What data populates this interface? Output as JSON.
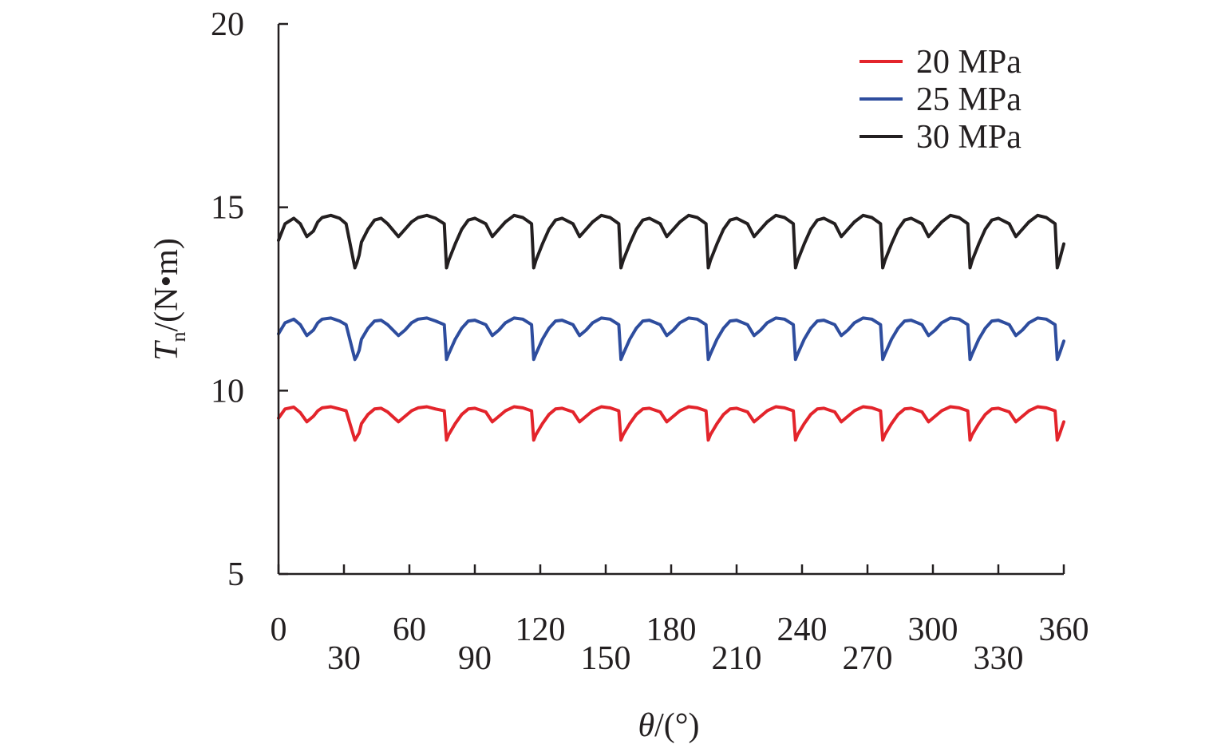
{
  "chart_data": {
    "type": "line",
    "xlabel": {
      "symbol": "θ",
      "unit": "/(°)"
    },
    "ylabel": {
      "symbol": "T",
      "subscript": "n",
      "unit": "/(N•m)"
    },
    "xlim": [
      0,
      360
    ],
    "ylim": [
      5,
      20
    ],
    "x_ticks": [
      0,
      30,
      60,
      90,
      120,
      150,
      180,
      210,
      240,
      270,
      300,
      330,
      360
    ],
    "y_ticks": [
      5,
      10,
      15,
      20
    ],
    "grid": false,
    "legend_position": "top-right",
    "series": [
      {
        "name": "20 MPa",
        "color": "#e3242b",
        "x": [
          0,
          3,
          7,
          10,
          13,
          16,
          18,
          20,
          24,
          28,
          31,
          35,
          36,
          37,
          38,
          41,
          44,
          47,
          50,
          55,
          58,
          61,
          64,
          68,
          72,
          76,
          77,
          78,
          81,
          84,
          87,
          90,
          95,
          98,
          101,
          104,
          108,
          112,
          116,
          117,
          118,
          121,
          124,
          127,
          130,
          135,
          138,
          141,
          144,
          148,
          152,
          156,
          157,
          158,
          161,
          164,
          167,
          170,
          175,
          178,
          181,
          184,
          188,
          192,
          196,
          197,
          198,
          201,
          204,
          207,
          210,
          215,
          218,
          221,
          224,
          228,
          232,
          236,
          237,
          238,
          241,
          244,
          247,
          250,
          255,
          258,
          261,
          264,
          268,
          272,
          276,
          277,
          278,
          281,
          284,
          287,
          290,
          295,
          298,
          301,
          304,
          308,
          312,
          316,
          317,
          318,
          321,
          324,
          327,
          330,
          335,
          338,
          341,
          344,
          348,
          352,
          356,
          357,
          358,
          360
        ],
        "values": [
          9.25,
          9.5,
          9.55,
          9.4,
          9.15,
          9.3,
          9.45,
          9.53,
          9.56,
          9.5,
          9.45,
          8.65,
          8.75,
          8.85,
          9.1,
          9.35,
          9.5,
          9.52,
          9.42,
          9.15,
          9.3,
          9.45,
          9.53,
          9.56,
          9.5,
          9.45,
          8.65,
          8.8,
          9.1,
          9.35,
          9.5,
          9.52,
          9.42,
          9.15,
          9.3,
          9.45,
          9.56,
          9.53,
          9.45,
          8.65,
          8.8,
          9.1,
          9.35,
          9.5,
          9.52,
          9.42,
          9.15,
          9.3,
          9.45,
          9.56,
          9.53,
          9.45,
          8.65,
          8.8,
          9.1,
          9.35,
          9.5,
          9.52,
          9.42,
          9.15,
          9.3,
          9.45,
          9.56,
          9.53,
          9.45,
          8.65,
          8.8,
          9.1,
          9.35,
          9.5,
          9.52,
          9.42,
          9.15,
          9.3,
          9.45,
          9.56,
          9.53,
          9.45,
          8.65,
          8.8,
          9.1,
          9.35,
          9.5,
          9.52,
          9.42,
          9.15,
          9.3,
          9.45,
          9.56,
          9.53,
          9.45,
          8.65,
          8.8,
          9.1,
          9.35,
          9.5,
          9.52,
          9.42,
          9.15,
          9.3,
          9.45,
          9.56,
          9.53,
          9.45,
          8.65,
          8.8,
          9.1,
          9.35,
          9.5,
          9.52,
          9.42,
          9.15,
          9.3,
          9.45,
          9.56,
          9.53,
          9.45,
          8.65,
          8.8,
          9.15
        ]
      },
      {
        "name": "25 MPa",
        "color": "#2e4d9e",
        "x": [
          0,
          3,
          7,
          10,
          13,
          16,
          18,
          20,
          24,
          28,
          31,
          35,
          36,
          37,
          38,
          41,
          44,
          47,
          50,
          55,
          58,
          61,
          64,
          68,
          72,
          76,
          77,
          78,
          81,
          84,
          87,
          90,
          95,
          98,
          101,
          104,
          108,
          112,
          116,
          117,
          118,
          121,
          124,
          127,
          130,
          135,
          138,
          141,
          144,
          148,
          152,
          156,
          157,
          158,
          161,
          164,
          167,
          170,
          175,
          178,
          181,
          184,
          188,
          192,
          196,
          197,
          198,
          201,
          204,
          207,
          210,
          215,
          218,
          221,
          224,
          228,
          232,
          236,
          237,
          238,
          241,
          244,
          247,
          250,
          255,
          258,
          261,
          264,
          268,
          272,
          276,
          277,
          278,
          281,
          284,
          287,
          290,
          295,
          298,
          301,
          304,
          308,
          312,
          316,
          317,
          318,
          321,
          324,
          327,
          330,
          335,
          338,
          341,
          344,
          348,
          352,
          356,
          357,
          358,
          360
        ],
        "values": [
          11.55,
          11.85,
          11.95,
          11.8,
          11.5,
          11.65,
          11.85,
          11.95,
          11.98,
          11.9,
          11.8,
          10.85,
          10.95,
          11.1,
          11.4,
          11.7,
          11.9,
          11.92,
          11.8,
          11.5,
          11.65,
          11.85,
          11.95,
          11.98,
          11.9,
          11.8,
          10.85,
          11.0,
          11.4,
          11.7,
          11.9,
          11.92,
          11.8,
          11.5,
          11.65,
          11.85,
          11.98,
          11.95,
          11.8,
          10.85,
          11.0,
          11.4,
          11.7,
          11.9,
          11.92,
          11.8,
          11.5,
          11.65,
          11.85,
          11.98,
          11.95,
          11.8,
          10.85,
          11.0,
          11.4,
          11.7,
          11.9,
          11.92,
          11.8,
          11.5,
          11.65,
          11.85,
          11.98,
          11.95,
          11.8,
          10.85,
          11.0,
          11.4,
          11.7,
          11.9,
          11.92,
          11.8,
          11.5,
          11.65,
          11.85,
          11.98,
          11.95,
          11.8,
          10.85,
          11.0,
          11.4,
          11.7,
          11.9,
          11.92,
          11.8,
          11.5,
          11.65,
          11.85,
          11.98,
          11.95,
          11.8,
          10.85,
          11.0,
          11.4,
          11.7,
          11.9,
          11.92,
          11.8,
          11.5,
          11.65,
          11.85,
          11.98,
          11.95,
          11.8,
          10.85,
          11.0,
          11.4,
          11.7,
          11.9,
          11.92,
          11.8,
          11.5,
          11.65,
          11.85,
          11.98,
          11.95,
          11.8,
          10.85,
          11.0,
          11.35
        ]
      },
      {
        "name": "30 MPa",
        "color": "#231f20",
        "x": [
          0,
          3,
          7,
          10,
          13,
          16,
          18,
          20,
          24,
          28,
          31,
          35,
          36,
          37,
          38,
          41,
          44,
          47,
          50,
          55,
          58,
          61,
          64,
          68,
          72,
          76,
          77,
          78,
          81,
          84,
          87,
          90,
          95,
          98,
          101,
          104,
          108,
          112,
          116,
          117,
          118,
          121,
          124,
          127,
          130,
          135,
          138,
          141,
          144,
          148,
          152,
          156,
          157,
          158,
          161,
          164,
          167,
          170,
          175,
          178,
          181,
          184,
          188,
          192,
          196,
          197,
          198,
          201,
          204,
          207,
          210,
          215,
          218,
          221,
          224,
          228,
          232,
          236,
          237,
          238,
          241,
          244,
          247,
          250,
          255,
          258,
          261,
          264,
          268,
          272,
          276,
          277,
          278,
          281,
          284,
          287,
          290,
          295,
          298,
          301,
          304,
          308,
          312,
          316,
          317,
          318,
          321,
          324,
          327,
          330,
          335,
          338,
          341,
          344,
          348,
          352,
          356,
          357,
          358,
          360
        ],
        "values": [
          14.1,
          14.55,
          14.7,
          14.55,
          14.2,
          14.35,
          14.6,
          14.72,
          14.78,
          14.7,
          14.55,
          13.35,
          13.5,
          13.7,
          14.05,
          14.4,
          14.65,
          14.7,
          14.55,
          14.2,
          14.4,
          14.6,
          14.72,
          14.78,
          14.7,
          14.55,
          13.35,
          13.55,
          14.0,
          14.4,
          14.65,
          14.7,
          14.55,
          14.2,
          14.4,
          14.6,
          14.78,
          14.72,
          14.55,
          13.35,
          13.55,
          14.0,
          14.4,
          14.65,
          14.7,
          14.55,
          14.2,
          14.4,
          14.6,
          14.78,
          14.72,
          14.55,
          13.35,
          13.55,
          14.0,
          14.4,
          14.65,
          14.7,
          14.55,
          14.2,
          14.4,
          14.6,
          14.78,
          14.72,
          14.55,
          13.35,
          13.55,
          14.0,
          14.4,
          14.65,
          14.7,
          14.55,
          14.2,
          14.4,
          14.6,
          14.78,
          14.72,
          14.55,
          13.35,
          13.55,
          14.0,
          14.4,
          14.65,
          14.7,
          14.55,
          14.2,
          14.4,
          14.6,
          14.78,
          14.72,
          14.55,
          13.35,
          13.55,
          14.0,
          14.4,
          14.65,
          14.7,
          14.55,
          14.2,
          14.4,
          14.6,
          14.78,
          14.72,
          14.55,
          13.35,
          13.55,
          14.0,
          14.4,
          14.65,
          14.7,
          14.55,
          14.2,
          14.4,
          14.6,
          14.78,
          14.72,
          14.55,
          13.35,
          13.55,
          14.0
        ]
      }
    ]
  }
}
